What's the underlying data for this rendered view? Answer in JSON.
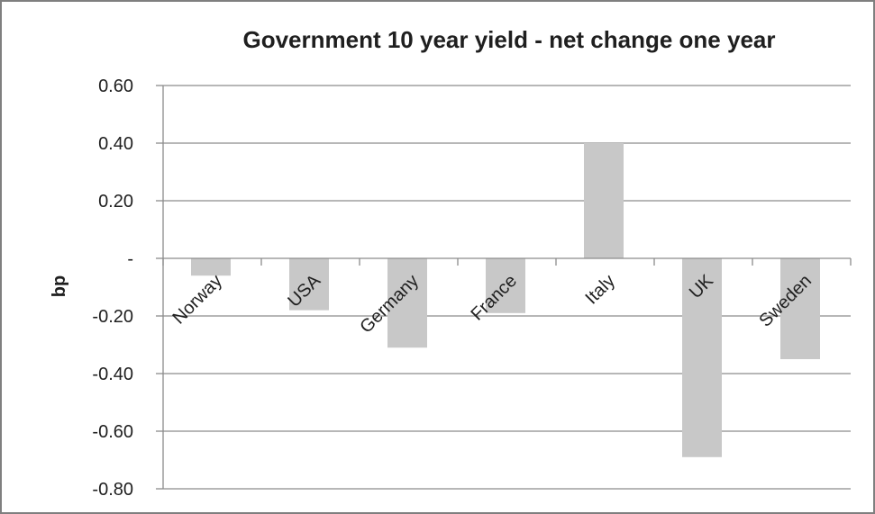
{
  "chart_data": {
    "type": "bar",
    "title": "Government 10 year yield - net change one year",
    "ylabel": "bp",
    "xlabel": "",
    "categories": [
      "Norway",
      "USA",
      "Germany",
      "France",
      "Italy",
      "UK",
      "Sweden"
    ],
    "values": [
      -0.06,
      -0.18,
      -0.31,
      -0.19,
      0.4,
      -0.69,
      -0.35
    ],
    "ylim": [
      -0.8,
      0.6
    ],
    "yticks": [
      0.6,
      0.4,
      0.2,
      0,
      -0.2,
      -0.4,
      -0.6,
      -0.8
    ],
    "ytick_labels": [
      "0.60",
      "0.40",
      "0.20",
      "-",
      "-0.20",
      "-0.40",
      "-0.60",
      "-0.80"
    ],
    "grid": true,
    "legend": "none",
    "colors": {
      "bar": "#c8c8c8",
      "grid": "#8c8c8c",
      "axis": "#8c8c8c",
      "frame": "#7f7f7f"
    }
  }
}
